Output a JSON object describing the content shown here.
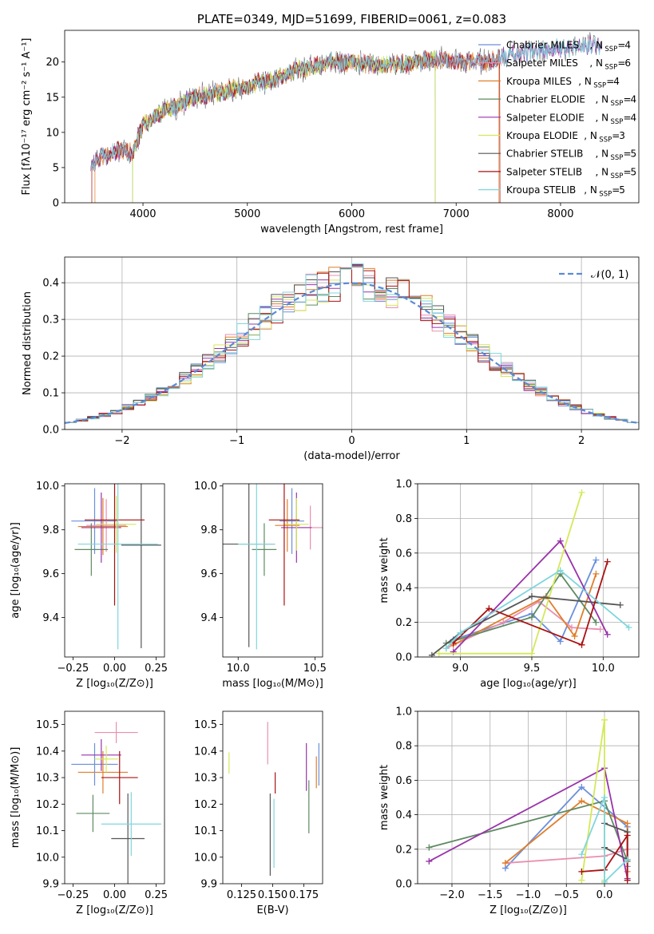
{
  "colors": {
    "Chabrier MILES": "#6a8fdc",
    "Salpeter MILES": "#e98fb0",
    "Kroupa MILES": "#e07e2a",
    "Chabrier ELODIE": "#5d8a62",
    "Salpeter ELODIE": "#9933aa",
    "Kroupa ELODIE": "#d4e85a",
    "Chabrier STELIB": "#555555",
    "Salpeter STELIB": "#aa1111",
    "Kroupa STELIB": "#7fd6dc"
  },
  "chart_data": [
    {
      "id": "spectrum",
      "type": "line",
      "title": "PLATE=0349, MJD=51699, FIBERID=0061, z=0.083",
      "xlabel": "wavelength [Angstrom, rest frame]",
      "ylabel": "Flux [fλ10⁻¹⁷ erg cm⁻² s⁻¹ A⁻¹]",
      "xlim": [
        3250,
        8750
      ],
      "ylim": [
        0,
        24.5
      ],
      "xticks": [
        "4000",
        "5000",
        "6000",
        "7000",
        "8000"
      ],
      "yticks": [
        "0",
        "5",
        "10",
        "15",
        "20"
      ],
      "grid": false,
      "legend_position": "right",
      "legend": [
        {
          "name": "Chabrier MILES",
          "nssp": "4"
        },
        {
          "name": "Salpeter MILES",
          "nssp": "6"
        },
        {
          "name": "Kroupa MILES",
          "nssp": "4"
        },
        {
          "name": "Chabrier ELODIE",
          "nssp": "4"
        },
        {
          "name": "Salpeter ELODIE",
          "nssp": "4"
        },
        {
          "name": "Kroupa ELODIE",
          "nssp": "3"
        },
        {
          "name": "Chabrier STELIB",
          "nssp": "5"
        },
        {
          "name": "Salpeter STELIB",
          "nssp": "5"
        },
        {
          "name": "Kroupa STELIB",
          "nssp": "5"
        }
      ],
      "continuum": {
        "wavelength": [
          3500,
          3600,
          3700,
          3800,
          3900,
          4000,
          4200,
          4500,
          4800,
          5000,
          5300,
          5500,
          5800,
          6000,
          6300,
          6600,
          6800,
          7000,
          7300,
          7500,
          8000,
          8400
        ],
        "flux": [
          5.5,
          6.5,
          7.0,
          7.5,
          7.0,
          11.0,
          13.0,
          15.0,
          16.0,
          16.5,
          18.0,
          19.0,
          20.0,
          20.0,
          19.5,
          20.0,
          20.5,
          20.0,
          20.0,
          21.0,
          22.0,
          22.5
        ]
      },
      "model_cutoffs": [
        {
          "model": "Kroupa ELODIE",
          "low": 3900,
          "high": 6800
        },
        {
          "model": "Salpeter STELIB",
          "low": 3510,
          "high": 7420
        },
        {
          "model": "Kroupa MILES",
          "low": 3540,
          "high": 7410
        },
        {
          "model": "Chabrier ELODIE",
          "low": 3900,
          "high": 6800
        }
      ]
    },
    {
      "id": "residual-histogram",
      "type": "line",
      "xlabel": "(data-model)/error",
      "ylabel": "Normed distribution",
      "xlim": [
        -2.5,
        2.5
      ],
      "ylim": [
        0,
        0.47
      ],
      "xticks": [
        "−2",
        "−1",
        "0",
        "1",
        "2"
      ],
      "yticks": [
        "0.0",
        "0.1",
        "0.2",
        "0.3",
        "0.4"
      ],
      "grid": true,
      "legend_position": "top-right",
      "reference_curve": {
        "name": "𝒩(0, 1)",
        "mean": 0,
        "sigma": 1
      },
      "bin_width": 0.1,
      "bins_from": -2.5
    },
    {
      "id": "age-vs-Z",
      "type": "scatter",
      "xlabel": "Z [log₁₀(Z/Z⊙)]",
      "ylabel": "age  [log₁₀(age/yr)]",
      "xlim": [
        -0.3,
        0.3
      ],
      "ylim": [
        9.22,
        10.01
      ],
      "xticks": [
        "−0.25",
        "0.00",
        "0.25"
      ],
      "yticks": [
        "9.4",
        "9.6",
        "9.8",
        "10.0"
      ],
      "points": [
        {
          "model": "Chabrier MILES",
          "x": -0.12,
          "xerr": 0.14,
          "y": 9.84,
          "yerr": 0.15
        },
        {
          "model": "Salpeter MILES",
          "x": -0.05,
          "xerr": 0.12,
          "y": 9.82,
          "yerr": 0.12
        },
        {
          "model": "Kroupa MILES",
          "x": -0.07,
          "xerr": 0.15,
          "y": 9.815,
          "yerr": 0.13
        },
        {
          "model": "Chabrier ELODIE",
          "x": -0.14,
          "xerr": 0.1,
          "y": 9.71,
          "yerr": 0.12
        },
        {
          "model": "Salpeter ELODIE",
          "x": -0.08,
          "xerr": 0.12,
          "y": 9.81,
          "yerr": 0.16
        },
        {
          "model": "Kroupa ELODIE",
          "x": 0.01,
          "xerr": 0.12,
          "y": 9.825,
          "yerr": 0.13
        },
        {
          "model": "Chabrier STELIB",
          "x": 0.16,
          "xerr": 0.12,
          "y": 9.73,
          "yerr": 0.47
        },
        {
          "model": "Salpeter STELIB",
          "x": 0.0,
          "xerr": 0.18,
          "y": 9.845,
          "yerr": 0.39
        },
        {
          "model": "Kroupa STELIB",
          "x": 0.02,
          "xerr": 0.24,
          "y": 9.735,
          "yerr": 0.48
        }
      ]
    },
    {
      "id": "age-vs-mass",
      "type": "scatter",
      "xlabel": "mass [log₁₀(M/M⊙)]",
      "xlim": [
        9.9,
        10.55
      ],
      "ylim": [
        9.22,
        10.01
      ],
      "xticks": [
        "10.0",
        "10.5"
      ],
      "yticks": [
        "9.4",
        "9.6",
        "9.8",
        "10.0"
      ],
      "points": [
        {
          "model": "Chabrier MILES",
          "x": 10.35,
          "xerr": 0.08,
          "y": 9.84,
          "yerr": 0.15
        },
        {
          "model": "Salpeter MILES",
          "x": 10.47,
          "xerr": 0.08,
          "y": 9.81,
          "yerr": 0.1
        },
        {
          "model": "Kroupa MILES",
          "x": 10.32,
          "xerr": 0.08,
          "y": 9.82,
          "yerr": 0.12
        },
        {
          "model": "Chabrier ELODIE",
          "x": 10.17,
          "xerr": 0.08,
          "y": 9.71,
          "yerr": 0.12
        },
        {
          "model": "Salpeter ELODIE",
          "x": 10.38,
          "xerr": 0.1,
          "y": 9.81,
          "yerr": 0.16
        },
        {
          "model": "Kroupa ELODIE",
          "x": 10.38,
          "xerr": 0.08,
          "y": 9.825,
          "yerr": 0.12
        },
        {
          "model": "Chabrier STELIB",
          "x": 10.07,
          "xerr": 0.17,
          "y": 9.735,
          "yerr": 0.47
        },
        {
          "model": "Salpeter STELIB",
          "x": 10.3,
          "xerr": 0.1,
          "y": 9.845,
          "yerr": 0.39
        },
        {
          "model": "Kroupa STELIB",
          "x": 10.12,
          "xerr": 0.12,
          "y": 9.735,
          "yerr": 0.48
        }
      ]
    },
    {
      "id": "weight-vs-age",
      "type": "line",
      "xlabel": "age  [log₁₀(age/yr)]",
      "ylabel": "mass weight",
      "xlim": [
        8.7,
        10.25
      ],
      "ylim": [
        0,
        1.0
      ],
      "xticks": [
        "9.0",
        "9.5",
        "10.0"
      ],
      "yticks": [
        "0.0",
        "0.2",
        "0.4",
        "0.6",
        "0.8",
        "1.0"
      ],
      "grid": true,
      "series": [
        {
          "model": "Chabrier MILES",
          "x": [
            8.95,
            9.5,
            9.7,
            9.95
          ],
          "y": [
            0.1,
            0.25,
            0.09,
            0.56
          ]
        },
        {
          "model": "Salpeter MILES",
          "x": [
            8.9,
            9.3,
            9.55,
            9.78,
            9.98
          ],
          "y": [
            0.05,
            0.2,
            0.32,
            0.17,
            0.16
          ]
        },
        {
          "model": "Kroupa MILES",
          "x": [
            8.95,
            9.6,
            9.8,
            9.95
          ],
          "y": [
            0.07,
            0.35,
            0.12,
            0.48
          ]
        },
        {
          "model": "Chabrier ELODIE",
          "x": [
            8.9,
            9.5,
            9.7,
            9.95
          ],
          "y": [
            0.08,
            0.23,
            0.48,
            0.2
          ]
        },
        {
          "model": "Salpeter ELODIE",
          "x": [
            8.95,
            9.7,
            10.03
          ],
          "y": [
            0.03,
            0.67,
            0.13
          ]
        },
        {
          "model": "Kroupa ELODIE",
          "x": [
            8.85,
            9.5,
            9.85
          ],
          "y": [
            0.02,
            0.02,
            0.95
          ]
        },
        {
          "model": "Chabrier STELIB",
          "x": [
            8.8,
            9.0,
            9.5,
            10.12
          ],
          "y": [
            0.01,
            0.14,
            0.35,
            0.3
          ]
        },
        {
          "model": "Salpeter STELIB",
          "x": [
            8.95,
            9.2,
            9.85,
            10.03
          ],
          "y": [
            0.08,
            0.28,
            0.07,
            0.55
          ]
        },
        {
          "model": "Kroupa STELIB",
          "x": [
            8.9,
            9.0,
            9.7,
            10.18
          ],
          "y": [
            0.05,
            0.14,
            0.5,
            0.17
          ]
        }
      ]
    },
    {
      "id": "mass-vs-Z",
      "type": "scatter",
      "xlabel": "Z [log₁₀(Z/Z⊙)]",
      "ylabel": "mass [log₁₀(M/M⊙)]",
      "xlim": [
        -0.3,
        0.3
      ],
      "ylim": [
        9.9,
        10.55
      ],
      "xticks": [
        "−0.25",
        "0.00",
        "0.25"
      ],
      "yticks": [
        "9.9",
        "10.0",
        "10.1",
        "10.2",
        "10.3",
        "10.4",
        "10.5"
      ],
      "points": [
        {
          "model": "Chabrier MILES",
          "x": -0.12,
          "xerr": 0.14,
          "y": 10.35,
          "yerr": 0.08
        },
        {
          "model": "Salpeter MILES",
          "x": 0.01,
          "xerr": 0.13,
          "y": 10.47,
          "yerr": 0.04
        },
        {
          "model": "Kroupa MILES",
          "x": -0.07,
          "xerr": 0.15,
          "y": 10.32,
          "yerr": 0.08
        },
        {
          "model": "Chabrier ELODIE",
          "x": -0.13,
          "xerr": 0.1,
          "y": 10.165,
          "yerr": 0.07
        },
        {
          "model": "Salpeter ELODIE",
          "x": -0.08,
          "xerr": 0.12,
          "y": 10.385,
          "yerr": 0.06
        },
        {
          "model": "Kroupa ELODIE",
          "x": -0.05,
          "xerr": 0.07,
          "y": 10.37,
          "yerr": 0.05
        },
        {
          "model": "Chabrier STELIB",
          "x": 0.08,
          "xerr": 0.1,
          "y": 10.07,
          "yerr": 0.17
        },
        {
          "model": "Salpeter STELIB",
          "x": 0.03,
          "xerr": 0.11,
          "y": 10.3,
          "yerr": 0.1
        },
        {
          "model": "Kroupa STELIB",
          "x": 0.1,
          "xerr": 0.18,
          "y": 10.125,
          "yerr": 0.12
        }
      ]
    },
    {
      "id": "mass-vs-ebv",
      "type": "scatter",
      "xlabel": "E(B-V)",
      "xlim": [
        0.11,
        0.19
      ],
      "ylim": [
        9.9,
        10.55
      ],
      "xticks": [
        "0.125",
        "0.150",
        "0.175"
      ],
      "yticks": [
        "9.9",
        "10.0",
        "10.1",
        "10.2",
        "10.3",
        "10.4",
        "10.5"
      ],
      "points": [
        {
          "model": "Chabrier MILES",
          "x": 0.187,
          "y": 10.35,
          "yerr": 0.08
        },
        {
          "model": "Salpeter MILES",
          "x": 0.146,
          "y": 10.43,
          "yerr": 0.08
        },
        {
          "model": "Kroupa MILES",
          "x": 0.185,
          "y": 10.32,
          "yerr": 0.06
        },
        {
          "model": "Chabrier ELODIE",
          "x": 0.179,
          "y": 10.19,
          "yerr": 0.1
        },
        {
          "model": "Salpeter ELODIE",
          "x": 0.177,
          "y": 10.34,
          "yerr": 0.09
        },
        {
          "model": "Kroupa ELODIE",
          "x": 0.115,
          "y": 10.355,
          "yerr": 0.04
        },
        {
          "model": "Chabrier STELIB",
          "x": 0.148,
          "y": 10.085,
          "yerr": 0.155
        },
        {
          "model": "Salpeter STELIB",
          "x": 0.152,
          "y": 10.28,
          "yerr": 0.04
        },
        {
          "model": "Kroupa STELIB",
          "x": 0.151,
          "y": 10.09,
          "yerr": 0.13
        }
      ]
    },
    {
      "id": "weight-vs-Z",
      "type": "line",
      "xlabel": "Z [log₁₀(Z/Z⊙)]",
      "ylabel": "mass weight",
      "xlim": [
        -2.45,
        0.45
      ],
      "ylim": [
        0,
        1.0
      ],
      "xticks": [
        "−2.0",
        "−1.5",
        "−1.0",
        "−0.5",
        "0.0"
      ],
      "yticks": [
        "0.0",
        "0.2",
        "0.4",
        "0.6",
        "0.8",
        "1.0"
      ],
      "grid": true,
      "series": [
        {
          "model": "Chabrier MILES",
          "x": [
            -1.3,
            -0.3,
            0.3,
            0.3
          ],
          "y": [
            0.09,
            0.56,
            0.33,
            0.1
          ]
        },
        {
          "model": "Salpeter MILES",
          "x": [
            -1.3,
            0.0,
            0.3
          ],
          "y": [
            0.12,
            0.16,
            0.2
          ]
        },
        {
          "model": "Kroupa MILES",
          "x": [
            -1.3,
            -0.3,
            0.3,
            0.3
          ],
          "y": [
            0.12,
            0.48,
            0.35,
            0.07
          ]
        },
        {
          "model": "Chabrier ELODIE",
          "x": [
            -2.3,
            0.0,
            0.3
          ],
          "y": [
            0.21,
            0.48,
            0.13
          ]
        },
        {
          "model": "Salpeter ELODIE",
          "x": [
            -2.3,
            0.0,
            0.3
          ],
          "y": [
            0.13,
            0.67,
            0.03
          ]
        },
        {
          "model": "Kroupa ELODIE",
          "x": [
            -0.3,
            0.0,
            0.0
          ],
          "y": [
            0.02,
            0.95,
            0.02
          ]
        },
        {
          "model": "Chabrier STELIB",
          "x": [
            0.0,
            0.3,
            0.3,
            0.0
          ],
          "y": [
            0.35,
            0.3,
            0.14,
            0.21
          ]
        },
        {
          "model": "Salpeter STELIB",
          "x": [
            -0.3,
            0.0,
            0.3,
            0.3
          ],
          "y": [
            0.07,
            0.08,
            0.28,
            0.02
          ]
        },
        {
          "model": "Kroupa STELIB",
          "x": [
            -0.3,
            0.0,
            0.0,
            0.3
          ],
          "y": [
            0.17,
            0.5,
            0.01,
            0.14
          ]
        }
      ]
    }
  ]
}
